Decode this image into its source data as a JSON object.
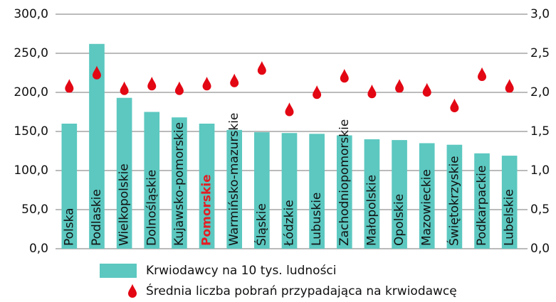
{
  "chart_data": {
    "type": "bar+scatter",
    "categories": [
      "Polska",
      "Podlaskie",
      "Wielkopolskie",
      "Dolnośląskie",
      "Kujawsko-pomorskie",
      "Pomorskie",
      "Warmińsko-mazurskie",
      "Śląskie",
      "Łódzkie",
      "Lubuskie",
      "Zachodniopomorskie",
      "Małopolskie",
      "Opolskie",
      "Mazowieckie",
      "Świętokrzyskie",
      "Podkarpackie",
      "Lubelskie"
    ],
    "highlight_category": "Pomorskie",
    "highlight_color": "#e31e24",
    "series": [
      {
        "name": "Krwiodawcy na 10 tys. ludności",
        "color": "#5cc8c0",
        "type": "bar",
        "values": [
          160,
          262,
          193,
          175,
          168,
          160,
          152,
          149,
          148,
          147,
          145,
          140,
          139,
          135,
          133,
          122,
          119
        ]
      },
      {
        "name": "Średnia liczba pobrań przypadająca na krwiodawcę",
        "color": "#e30613",
        "type": "scatter",
        "axis": "y2",
        "values": [
          2.05,
          2.22,
          2.02,
          2.08,
          2.02,
          2.08,
          2.12,
          2.28,
          1.75,
          1.97,
          2.18,
          1.98,
          2.05,
          2.0,
          1.8,
          2.2,
          2.05
        ]
      }
    ],
    "ylim": [
      0,
      300
    ],
    "yticks": [
      {
        "value": 0,
        "label": "0,0"
      },
      {
        "value": 50,
        "label": "50,0"
      },
      {
        "value": 100,
        "label": "100,0"
      },
      {
        "value": 150,
        "label": "150,0"
      },
      {
        "value": 200,
        "label": "200,0"
      },
      {
        "value": 250,
        "label": "250,0"
      },
      {
        "value": 300,
        "label": "300,0"
      }
    ],
    "y2lim": [
      0,
      3
    ],
    "y2ticks": [
      {
        "value": 0,
        "label": "0,0"
      },
      {
        "value": 0.5,
        "label": "0,5"
      },
      {
        "value": 1,
        "label": "1,0"
      },
      {
        "value": 1.5,
        "label": "1,5"
      },
      {
        "value": 2,
        "label": "2,0"
      },
      {
        "value": 2.5,
        "label": "2,5"
      },
      {
        "value": 3,
        "label": "3,0"
      }
    ],
    "grid": true
  }
}
